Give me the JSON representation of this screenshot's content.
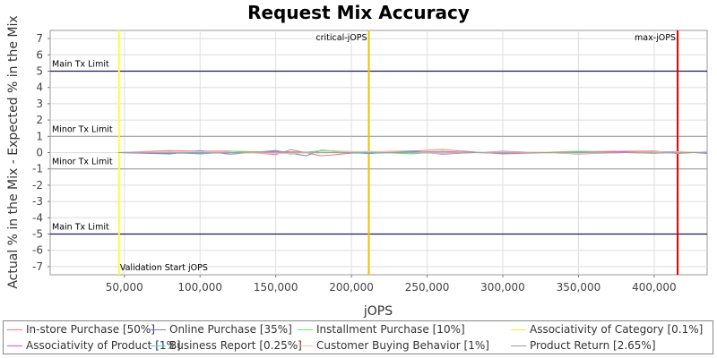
{
  "chart_data": {
    "type": "line",
    "title": "Request Mix Accuracy",
    "xlabel": "jOPS",
    "ylabel": "Actual % in the Mix - Expected % in the Mix",
    "xlim": [
      1000,
      435000
    ],
    "ylim": [
      -7.5,
      7.5
    ],
    "x_ticks": [
      50000,
      100000,
      150000,
      200000,
      250000,
      300000,
      350000,
      400000
    ],
    "x_tick_labels": [
      "50,000",
      "100,000",
      "150,000",
      "200,000",
      "250,000",
      "300,000",
      "350,000",
      "400,000"
    ],
    "y_ticks": [
      -7,
      -6,
      -5,
      -4,
      -3,
      -2,
      -1,
      0,
      1,
      2,
      3,
      4,
      5,
      6,
      7
    ],
    "y_tick_labels": [
      "-7",
      "-6",
      "-5",
      "-4",
      "-3",
      "-2",
      "-1",
      "0",
      "1",
      "2",
      "3",
      "4",
      "5",
      "6",
      "7"
    ],
    "grid": true,
    "reference_lines": [
      {
        "label": "Main Tx Limit",
        "y": 5,
        "color": "#1a1a5e"
      },
      {
        "label": "Minor Tx Limit",
        "y": 1,
        "color": "#a0a0a0"
      },
      {
        "label": "Minor Tx Limit",
        "y": -1,
        "color": "#a0a0a0"
      },
      {
        "label": "Main Tx Limit",
        "y": -5,
        "color": "#1a1a5e"
      }
    ],
    "markers": [
      {
        "label": "Validation Start jOPS",
        "x": 46500,
        "color": "#ffff33",
        "label_pos": "bottom"
      },
      {
        "label": "critical-jOPS",
        "x": 211500,
        "color": "#f0c000",
        "label_pos": "top"
      },
      {
        "label": "max-jOPS",
        "x": 415500,
        "color": "#dd0000",
        "label_pos": "top"
      }
    ],
    "series": [
      {
        "name": "In-store Purchase [50%]",
        "color": "#ff7777",
        "x": [
          46000,
          80000,
          100000,
          120000,
          150000,
          160000,
          180000,
          211000,
          240000,
          260000,
          300000,
          350000,
          400000,
          415000,
          435000
        ],
        "y": [
          0.0,
          0.12,
          0.08,
          0.1,
          -0.12,
          0.18,
          -0.2,
          0.05,
          0.1,
          0.18,
          -0.08,
          0.06,
          0.1,
          -0.06,
          0.05
        ]
      },
      {
        "name": "Online Purchase [35%]",
        "color": "#7777ff",
        "x": [
          46000,
          80000,
          100000,
          120000,
          150000,
          170000,
          180000,
          211000,
          240000,
          260000,
          300000,
          350000,
          400000,
          415000,
          435000
        ],
        "y": [
          0.0,
          -0.08,
          0.12,
          -0.1,
          0.12,
          -0.2,
          0.15,
          -0.06,
          0.1,
          -0.1,
          0.08,
          -0.08,
          0.05,
          0.06,
          -0.05
        ]
      },
      {
        "name": "Installment Purchase [10%]",
        "color": "#66ee66",
        "x": [
          46000,
          80000,
          100000,
          120000,
          150000,
          160000,
          180000,
          211000,
          240000,
          260000,
          300000,
          350000,
          400000,
          415000,
          435000
        ],
        "y": [
          0.0,
          0.05,
          -0.1,
          0.08,
          0.05,
          -0.1,
          0.12,
          0.04,
          -0.08,
          0.06,
          -0.05,
          0.08,
          -0.05,
          0.05,
          0.02
        ]
      },
      {
        "name": "Associativity of Category [0.1%]",
        "color": "#eeee44",
        "x": [
          46000,
          100000,
          150000,
          211000,
          260000,
          300000,
          350000,
          400000,
          435000
        ],
        "y": [
          0.0,
          0.02,
          -0.05,
          0.03,
          -0.04,
          0.02,
          0.03,
          -0.02,
          0.01
        ]
      },
      {
        "name": "Associativity of Product [1%]",
        "color": "#ee44ee",
        "x": [
          46000,
          100000,
          150000,
          211000,
          260000,
          300000,
          350000,
          400000,
          435000
        ],
        "y": [
          0.0,
          -0.03,
          0.04,
          -0.02,
          0.05,
          -0.03,
          0.02,
          0.04,
          -0.01
        ]
      },
      {
        "name": "Business Report [0.25%]",
        "color": "#44dddd",
        "x": [
          46000,
          100000,
          150000,
          211000,
          260000,
          300000,
          350000,
          400000,
          435000
        ],
        "y": [
          0.0,
          0.03,
          -0.04,
          0.02,
          -0.05,
          0.04,
          -0.03,
          0.02,
          0.0
        ]
      },
      {
        "name": "Customer Buying Behavior [1%]",
        "color": "#ffbbaa",
        "x": [
          46000,
          100000,
          150000,
          211000,
          260000,
          300000,
          350000,
          400000,
          435000
        ],
        "y": [
          0.0,
          0.06,
          -0.06,
          0.08,
          -0.04,
          0.05,
          -0.06,
          0.04,
          0.02
        ]
      },
      {
        "name": "Product Return [2.65%]",
        "color": "#999999",
        "x": [
          46000,
          100000,
          150000,
          211000,
          260000,
          300000,
          350000,
          400000,
          435000
        ],
        "y": [
          0.0,
          -0.05,
          0.06,
          -0.04,
          0.06,
          -0.05,
          0.04,
          -0.03,
          0.01
        ]
      }
    ]
  }
}
